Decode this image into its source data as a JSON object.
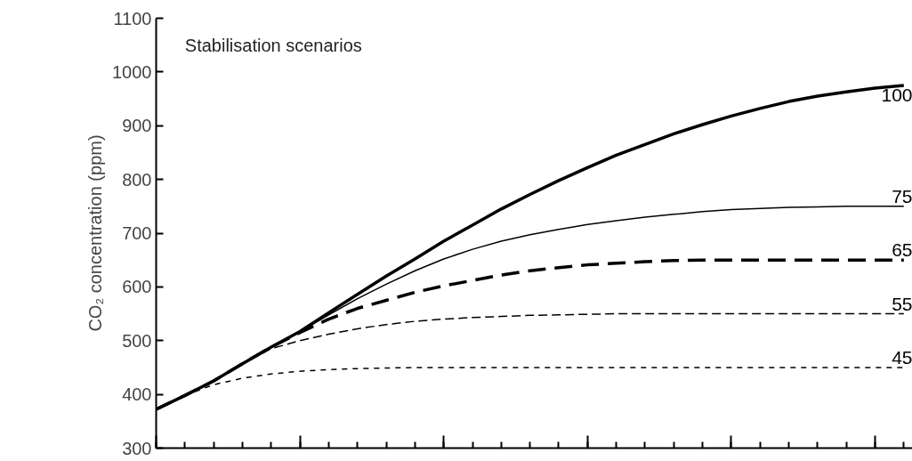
{
  "chart_data": {
    "type": "line",
    "title": "Stabilisation scenarios",
    "ylabel": "CO₂ concentration (ppm)",
    "categories": [
      null,
      null,
      null,
      null,
      null,
      null,
      null,
      null,
      null,
      null,
      null,
      null,
      null,
      null,
      null,
      null,
      null,
      null,
      null,
      null,
      null,
      null,
      null,
      null,
      null,
      null,
      null
    ],
    "ylim": [
      300,
      1100
    ],
    "yticks": [
      300,
      400,
      500,
      600,
      700,
      800,
      900,
      1000,
      1100
    ],
    "grid": false,
    "series": [
      {
        "name": "100",
        "color": "#000000",
        "line_style": "solid",
        "values": [
          372,
          398,
          425,
          457,
          488,
          517,
          552,
          586,
          620,
          652,
          685,
          715,
          745,
          772,
          798,
          822,
          845,
          865,
          885,
          902,
          918,
          932,
          945,
          955,
          963,
          970,
          975
        ]
      },
      {
        "name": "75",
        "color": "#000000",
        "line_style": "solid",
        "values": [
          372,
          398,
          425,
          457,
          488,
          517,
          548,
          578,
          605,
          630,
          652,
          670,
          685,
          697,
          707,
          716,
          723,
          730,
          735,
          740,
          744,
          746,
          748,
          749,
          750,
          750,
          750
        ]
      },
      {
        "name": "65",
        "color": "#000000",
        "line_style": "dashed",
        "values": [
          372,
          398,
          425,
          457,
          488,
          515,
          540,
          560,
          575,
          590,
          602,
          612,
          622,
          630,
          636,
          641,
          644,
          647,
          649,
          650,
          650,
          650,
          650,
          650,
          650,
          650,
          650
        ]
      },
      {
        "name": "55",
        "color": "#000000",
        "line_style": "dashed",
        "values": [
          372,
          398,
          425,
          457,
          485,
          500,
          512,
          522,
          530,
          536,
          540,
          543,
          545,
          547,
          548,
          549,
          550,
          550,
          550,
          550,
          550,
          550,
          550,
          550,
          550,
          550,
          550
        ]
      },
      {
        "name": "45",
        "color": "#000000",
        "line_style": "dotted",
        "values": [
          372,
          398,
          418,
          430,
          438,
          443,
          446,
          448,
          449,
          450,
          450,
          450,
          450,
          450,
          450,
          450,
          450,
          450,
          450,
          450,
          450,
          450,
          450,
          450,
          450,
          450,
          450
        ]
      }
    ]
  }
}
